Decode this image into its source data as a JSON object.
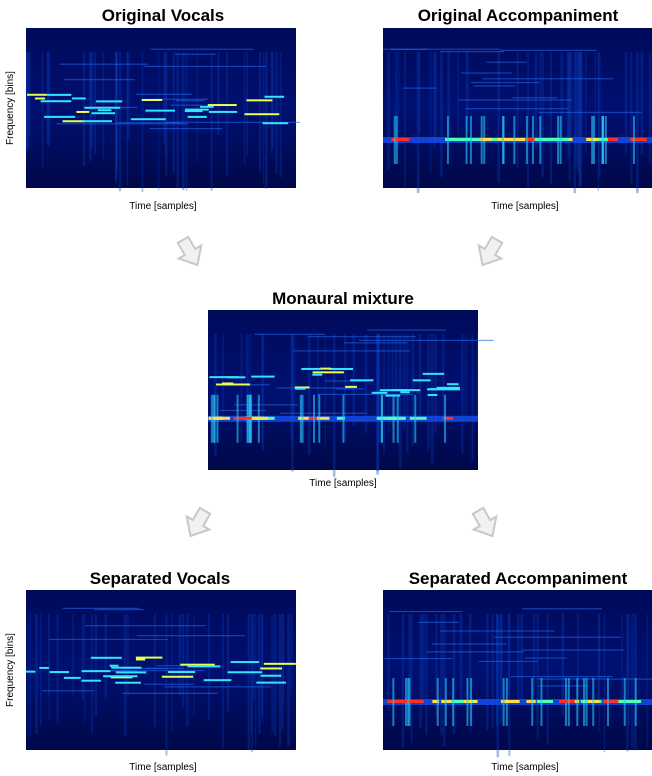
{
  "panels": [
    {
      "title": "Original Vocals",
      "x_label": "Time [samples]",
      "y_label": "Frequency [bins]"
    },
    {
      "title": "Original Accompaniment",
      "x_label": "Time [samples]"
    },
    {
      "title": "Monaural mixture",
      "x_label": "Time [samples]"
    },
    {
      "title": "Separated Vocals",
      "x_label": "Time [samples]",
      "y_label": "Frequency [bins]"
    },
    {
      "title": "Separated Accompaniment",
      "x_label": "Time [samples]"
    }
  ]
}
